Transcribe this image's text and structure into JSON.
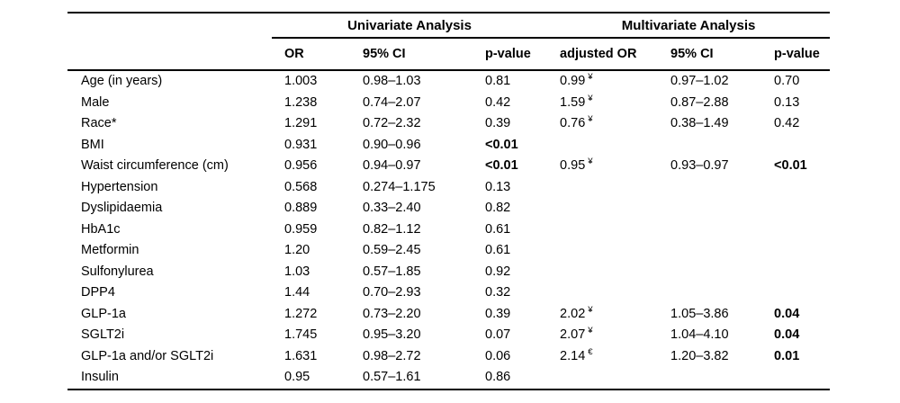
{
  "table": {
    "group_headers": {
      "univariate": "Univariate Analysis",
      "multivariate": "Multivariate Analysis"
    },
    "columns": {
      "or": "OR",
      "ci": "95% CI",
      "p": "p-value",
      "adjusted_or": "adjusted OR",
      "aci": "95% CI",
      "ap": "p-value"
    },
    "footnote_symbols": {
      "yen": "¥",
      "euro": "€"
    },
    "rows": [
      {
        "label": "Age (in years)",
        "or": "1.003",
        "ci": "0.98–1.03",
        "p": "0.81",
        "p_bold": false,
        "aor": "0.99",
        "aor_sup": "¥",
        "aci": "0.97–1.02",
        "ap": "0.70",
        "ap_bold": false
      },
      {
        "label": "Male",
        "or": "1.238",
        "ci": "0.74–2.07",
        "p": "0.42",
        "p_bold": false,
        "aor": "1.59",
        "aor_sup": "¥",
        "aci": "0.87–2.88",
        "ap": "0.13",
        "ap_bold": false
      },
      {
        "label": "Race*",
        "or": "1.291",
        "ci": "0.72–2.32",
        "p": "0.39",
        "p_bold": false,
        "aor": "0.76",
        "aor_sup": "¥",
        "aci": "0.38–1.49",
        "ap": "0.42",
        "ap_bold": false
      },
      {
        "label": "BMI",
        "or": "0.931",
        "ci": "0.90–0.96",
        "p": "<0.01",
        "p_bold": true,
        "aor": "",
        "aor_sup": "",
        "aci": "",
        "ap": "",
        "ap_bold": false
      },
      {
        "label": "Waist circumference (cm)",
        "or": "0.956",
        "ci": "0.94–0.97",
        "p": "<0.01",
        "p_bold": true,
        "aor": "0.95",
        "aor_sup": "¥",
        "aci": "0.93–0.97",
        "ap": "<0.01",
        "ap_bold": true
      },
      {
        "label": "Hypertension",
        "or": "0.568",
        "ci": "0.274–1.175",
        "p": "0.13",
        "p_bold": false,
        "aor": "",
        "aor_sup": "",
        "aci": "",
        "ap": "",
        "ap_bold": false
      },
      {
        "label": "Dyslipidaemia",
        "or": "0.889",
        "ci": "0.33–2.40",
        "p": "0.82",
        "p_bold": false,
        "aor": "",
        "aor_sup": "",
        "aci": "",
        "ap": "",
        "ap_bold": false
      },
      {
        "label": "HbA1c",
        "or": "0.959",
        "ci": "0.82–1.12",
        "p": "0.61",
        "p_bold": false,
        "aor": "",
        "aor_sup": "",
        "aci": "",
        "ap": "",
        "ap_bold": false
      },
      {
        "label": "Metformin",
        "or": "1.20",
        "ci": "0.59–2.45",
        "p": "0.61",
        "p_bold": false,
        "aor": "",
        "aor_sup": "",
        "aci": "",
        "ap": "",
        "ap_bold": false
      },
      {
        "label": "Sulfonylurea",
        "or": "1.03",
        "ci": "0.57–1.85",
        "p": "0.92",
        "p_bold": false,
        "aor": "",
        "aor_sup": "",
        "aci": "",
        "ap": "",
        "ap_bold": false
      },
      {
        "label": "DPP4",
        "or": "1.44",
        "ci": "0.70–2.93",
        "p": "0.32",
        "p_bold": false,
        "aor": "",
        "aor_sup": "",
        "aci": "",
        "ap": "",
        "ap_bold": false
      },
      {
        "label": "GLP-1a",
        "or": "1.272",
        "ci": "0.73–2.20",
        "p": "0.39",
        "p_bold": false,
        "aor": "2.02",
        "aor_sup": "¥",
        "aci": "1.05–3.86",
        "ap": "0.04",
        "ap_bold": true
      },
      {
        "label": "SGLT2i",
        "or": "1.745",
        "ci": "0.95–3.20",
        "p": "0.07",
        "p_bold": false,
        "aor": "2.07",
        "aor_sup": "¥",
        "aci": "1.04–4.10",
        "ap": "0.04",
        "ap_bold": true
      },
      {
        "label": "GLP-1a and/or SGLT2i",
        "or": "1.631",
        "ci": "0.98–2.72",
        "p": "0.06",
        "p_bold": false,
        "aor": "2.14",
        "aor_sup": "€",
        "aci": "1.20–3.82",
        "ap": "0.01",
        "ap_bold": true
      },
      {
        "label": "Insulin",
        "or": "0.95",
        "ci": "0.57–1.61",
        "p": "0.86",
        "p_bold": false,
        "aor": "",
        "aor_sup": "",
        "aci": "",
        "ap": "",
        "ap_bold": false
      }
    ]
  }
}
